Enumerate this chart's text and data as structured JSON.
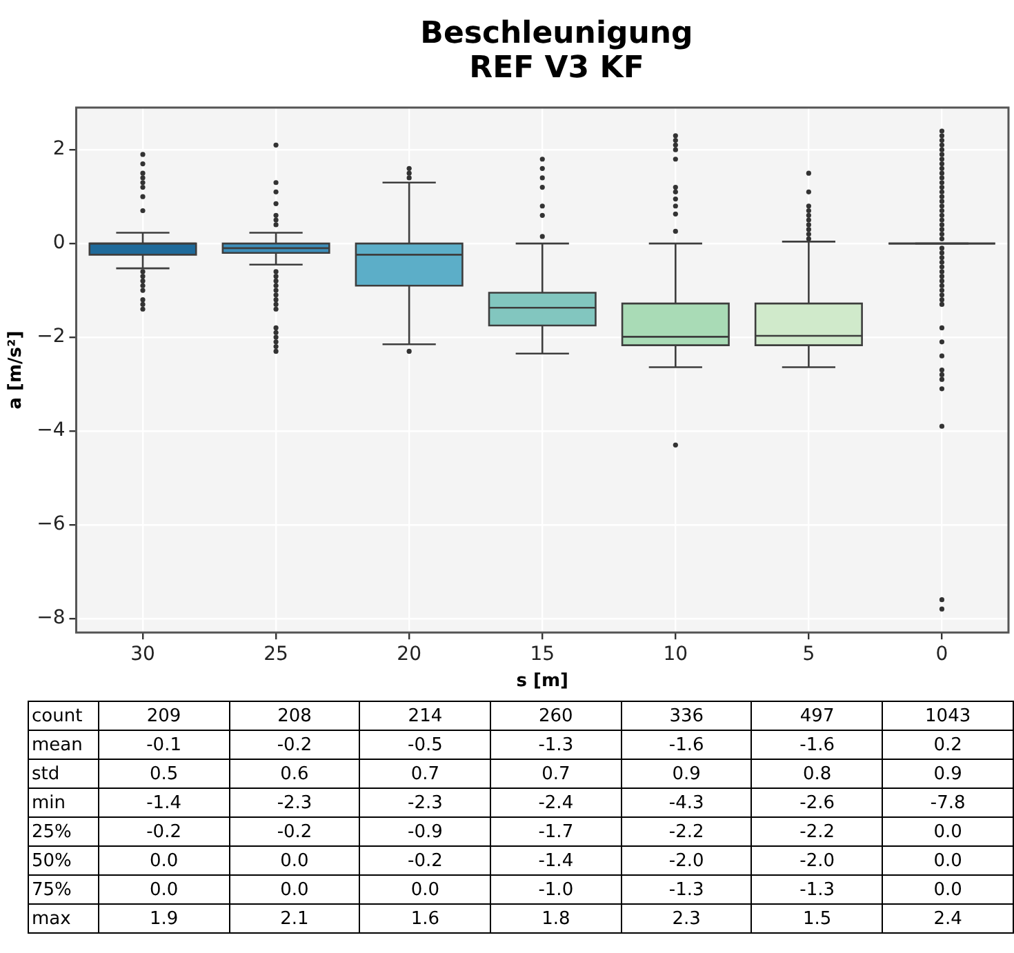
{
  "chart_data": {
    "type": "box",
    "title": "Beschleunigung",
    "subtitle": "REF V3 KF",
    "xlabel": "s [m]",
    "ylabel": "a [m/s²]",
    "categories": [
      "30",
      "25",
      "20",
      "15",
      "10",
      "5",
      "0"
    ],
    "colors": [
      "#1f6a9a",
      "#3d8fbb",
      "#5caec8",
      "#82c6bf",
      "#a9dbb6",
      "#d0eacb",
      "#3d3d3d"
    ],
    "ylim": [
      -8.3,
      2.9
    ],
    "yticks": [
      -8,
      -6,
      -4,
      -2,
      0,
      2
    ],
    "grid": true,
    "marker": "circle",
    "boxes": [
      {
        "low": -0.53,
        "q1": -0.24,
        "median": 0,
        "q3": 0,
        "high": 0.23,
        "outliers": [
          1.9,
          1.7,
          1.5,
          1.4,
          1.3,
          1.2,
          1.0,
          0.7,
          -0.6,
          -0.7,
          -0.8,
          -0.9,
          -1.0,
          -1.2,
          -1.3,
          -1.4
        ]
      },
      {
        "low": -0.45,
        "q1": -0.2,
        "median": -0.1,
        "q3": 0,
        "high": 0.23,
        "outliers": [
          2.1,
          1.3,
          1.1,
          0.85,
          0.6,
          0.5,
          0.4,
          -0.6,
          -0.7,
          -0.8,
          -0.9,
          -1.0,
          -1.1,
          -1.2,
          -1.3,
          -1.4,
          -1.8,
          -1.9,
          -2.0,
          -2.1,
          -2.2,
          -2.3
        ]
      },
      {
        "low": -2.15,
        "q1": -0.9,
        "median": -0.24,
        "q3": 0,
        "high": 1.3,
        "outliers": [
          1.6,
          1.5,
          1.4,
          -2.3
        ]
      },
      {
        "low": -2.35,
        "q1": -1.75,
        "median": -1.37,
        "q3": -1.05,
        "high": 0,
        "outliers": [
          1.8,
          1.6,
          1.4,
          1.2,
          0.8,
          0.6,
          0.15
        ]
      },
      {
        "low": -2.64,
        "q1": -2.17,
        "median": -1.99,
        "q3": -1.28,
        "high": 0,
        "outliers": [
          2.3,
          2.2,
          2.1,
          2.0,
          1.8,
          1.2,
          1.1,
          0.95,
          0.8,
          0.63,
          0.26,
          -4.3
        ]
      },
      {
        "low": -2.64,
        "q1": -2.17,
        "median": -1.97,
        "q3": -1.28,
        "high": 0.04,
        "outliers": [
          1.5,
          1.1,
          0.8,
          0.7,
          0.6,
          0.5,
          0.4,
          0.3,
          0.2,
          0.1
        ]
      },
      {
        "low": 0,
        "q1": 0,
        "median": 0,
        "q3": 0,
        "high": 0,
        "outliers": [
          2.4,
          2.3,
          2.2,
          2.1,
          2.0,
          1.9,
          1.8,
          1.7,
          1.6,
          1.5,
          1.4,
          1.3,
          1.2,
          1.1,
          1.0,
          0.9,
          0.8,
          0.7,
          0.6,
          0.5,
          0.4,
          0.3,
          0.2,
          0.1,
          -0.1,
          -0.2,
          -0.3,
          -0.4,
          -0.5,
          -0.6,
          -0.7,
          -0.8,
          -0.9,
          -1.0,
          -1.1,
          -1.2,
          -1.3,
          -1.8,
          -2.1,
          -2.4,
          -2.7,
          -2.8,
          -2.9,
          -3.1,
          -3.9,
          -7.6,
          -7.8
        ]
      }
    ],
    "annotations": [
      "count",
      "209",
      "208",
      "214",
      "260",
      "336",
      "497",
      "1043",
      "mean",
      "-0.1",
      "-0.2",
      "-0.5",
      "-1.3",
      "-1.6",
      "-1.6",
      "0.2",
      "std",
      "0.5",
      "0.6",
      "0.7",
      "0.7",
      "0.9",
      "0.8",
      "0.9",
      "min",
      "-1.4",
      "-2.3",
      "-2.3",
      "-2.4",
      "-4.3",
      "-2.6",
      "-7.8",
      "25%",
      "-0.2",
      "-0.2",
      "-0.9",
      "-1.7",
      "-2.2",
      "-2.2",
      "0.0",
      "50%",
      "0.0",
      "0.0",
      "-0.2",
      "-1.4",
      "-2.0",
      "-2.0",
      "0.0",
      "75%",
      "0.0",
      "0.0",
      "0.0",
      "-1.0",
      "-1.3",
      "-1.3",
      "0.0",
      "max",
      "1.9",
      "2.1",
      "1.6",
      "1.8",
      "2.3",
      "1.5",
      "2.4"
    ]
  }
}
